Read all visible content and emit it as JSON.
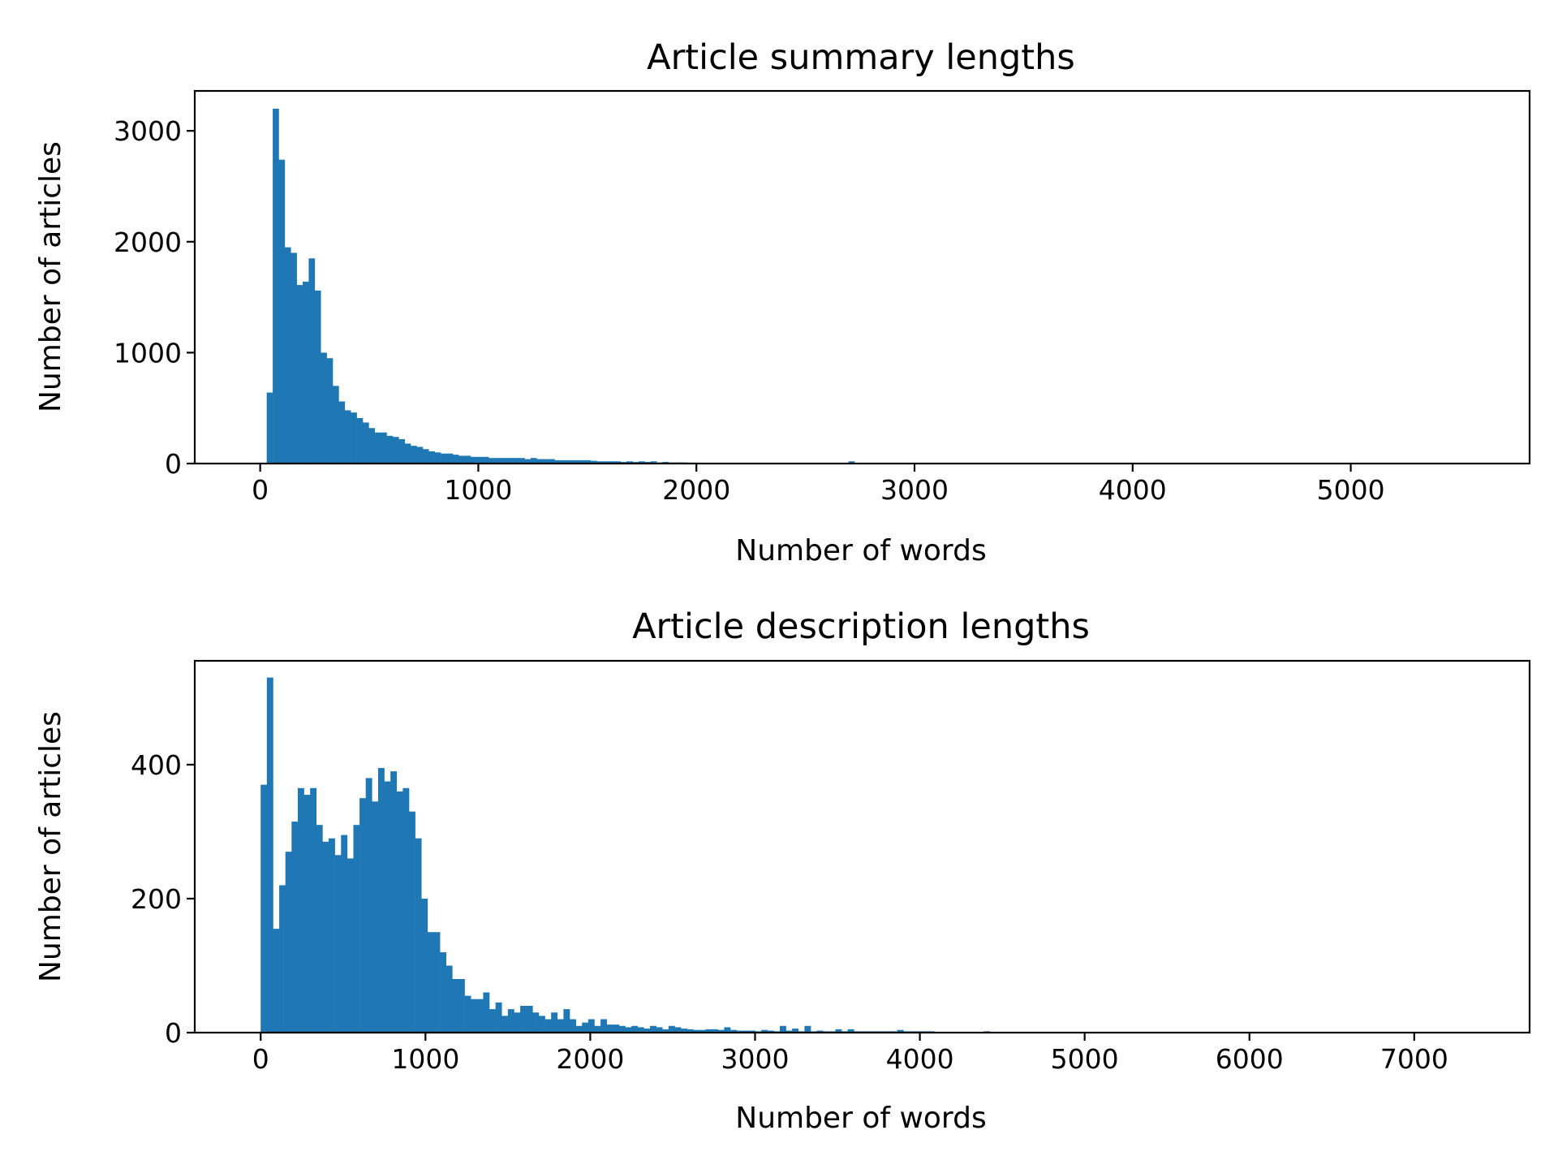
{
  "chart_data": [
    {
      "type": "bar",
      "title": "Article summary lengths",
      "xlabel": "Number of words",
      "ylabel": "Number of articles",
      "xlim": [
        -300,
        5820
      ],
      "ylim": [
        0,
        3360
      ],
      "xticks": [
        0,
        1000,
        2000,
        3000,
        4000,
        5000
      ],
      "yticks": [
        0,
        1000,
        2000,
        3000
      ],
      "bin_width": 27.5,
      "bin_start": 30,
      "values": [
        640,
        3200,
        2740,
        1950,
        1900,
        1610,
        1640,
        1850,
        1560,
        1000,
        950,
        700,
        560,
        480,
        460,
        410,
        370,
        320,
        280,
        280,
        250,
        240,
        220,
        180,
        160,
        150,
        130,
        110,
        100,
        90,
        90,
        80,
        70,
        70,
        60,
        60,
        60,
        50,
        50,
        50,
        50,
        50,
        50,
        40,
        50,
        40,
        40,
        40,
        30,
        30,
        30,
        30,
        30,
        30,
        25,
        20,
        20,
        20,
        20,
        15,
        20,
        15,
        20,
        15,
        20,
        10,
        15,
        10,
        10,
        10,
        8,
        8,
        6,
        6,
        5,
        5,
        4,
        4,
        4,
        3,
        3,
        3,
        2,
        2,
        2,
        2,
        2,
        2,
        2,
        2,
        2,
        2,
        2,
        2,
        2,
        2,
        2,
        20,
        2,
        2,
        2,
        2,
        2,
        1,
        1,
        1,
        1,
        1,
        1,
        1,
        1,
        1,
        1,
        1,
        1,
        1,
        1,
        1,
        1,
        1,
        1,
        1,
        1,
        1,
        1,
        1,
        1,
        1,
        1,
        1,
        1,
        1,
        1,
        1,
        1,
        1,
        1,
        1,
        1,
        1,
        1,
        1,
        1,
        1,
        1,
        1,
        1,
        1,
        1,
        1,
        1,
        1,
        1,
        1,
        1,
        1,
        1,
        1,
        1,
        1,
        1,
        1,
        1,
        1,
        1,
        1,
        1,
        1,
        1,
        1,
        1,
        1,
        1,
        1,
        1,
        1,
        1,
        1,
        1,
        1,
        1,
        1,
        1,
        1,
        1,
        1,
        1,
        1,
        1,
        1,
        1,
        1
      ],
      "color": "#1f77b4",
      "grid": false,
      "legend": "none"
    },
    {
      "type": "bar",
      "title": "Article description lengths",
      "xlabel": "Number of words",
      "ylabel": "Number of articles",
      "xlim": [
        -400,
        7700
      ],
      "ylim": [
        0,
        555
      ],
      "xticks": [
        0,
        1000,
        2000,
        3000,
        4000,
        5000,
        6000,
        7000
      ],
      "yticks": [
        0,
        200,
        400
      ],
      "bin_width": 37.5,
      "bin_start": 0,
      "values": [
        370,
        530,
        155,
        220,
        270,
        315,
        365,
        355,
        365,
        310,
        285,
        290,
        265,
        295,
        260,
        310,
        350,
        380,
        345,
        395,
        375,
        390,
        360,
        365,
        330,
        290,
        200,
        150,
        150,
        120,
        100,
        80,
        80,
        55,
        50,
        50,
        60,
        35,
        45,
        25,
        35,
        30,
        40,
        40,
        30,
        25,
        20,
        30,
        20,
        35,
        20,
        10,
        15,
        20,
        10,
        20,
        12,
        12,
        10,
        8,
        10,
        8,
        6,
        10,
        8,
        5,
        10,
        8,
        6,
        5,
        4,
        4,
        5,
        5,
        4,
        8,
        4,
        3,
        3,
        3,
        2,
        4,
        3,
        2,
        10,
        3,
        6,
        2,
        10,
        2,
        3,
        2,
        2,
        5,
        2,
        5,
        2,
        2,
        2,
        2,
        2,
        2,
        2,
        4,
        2,
        2,
        2,
        2,
        2,
        1,
        1,
        1,
        1,
        1,
        1,
        1,
        1,
        2,
        1,
        1,
        1,
        1,
        1,
        1,
        1,
        1,
        1,
        1,
        1,
        1,
        1,
        1,
        1,
        1,
        1,
        1,
        1,
        1,
        1,
        1,
        1,
        1,
        1,
        1,
        1,
        1,
        1,
        1,
        1,
        1,
        1,
        1,
        1,
        1,
        1,
        1,
        1,
        1,
        1,
        1,
        1,
        1,
        1,
        1,
        1,
        1,
        1,
        1,
        1,
        1,
        1,
        1,
        1,
        1,
        1,
        1,
        1,
        1,
        1,
        1,
        1,
        1,
        1,
        1,
        1,
        1,
        1,
        1,
        1,
        1,
        1,
        1,
        1,
        1,
        1,
        1
      ],
      "color": "#1f77b4",
      "grid": false,
      "legend": "none"
    }
  ]
}
